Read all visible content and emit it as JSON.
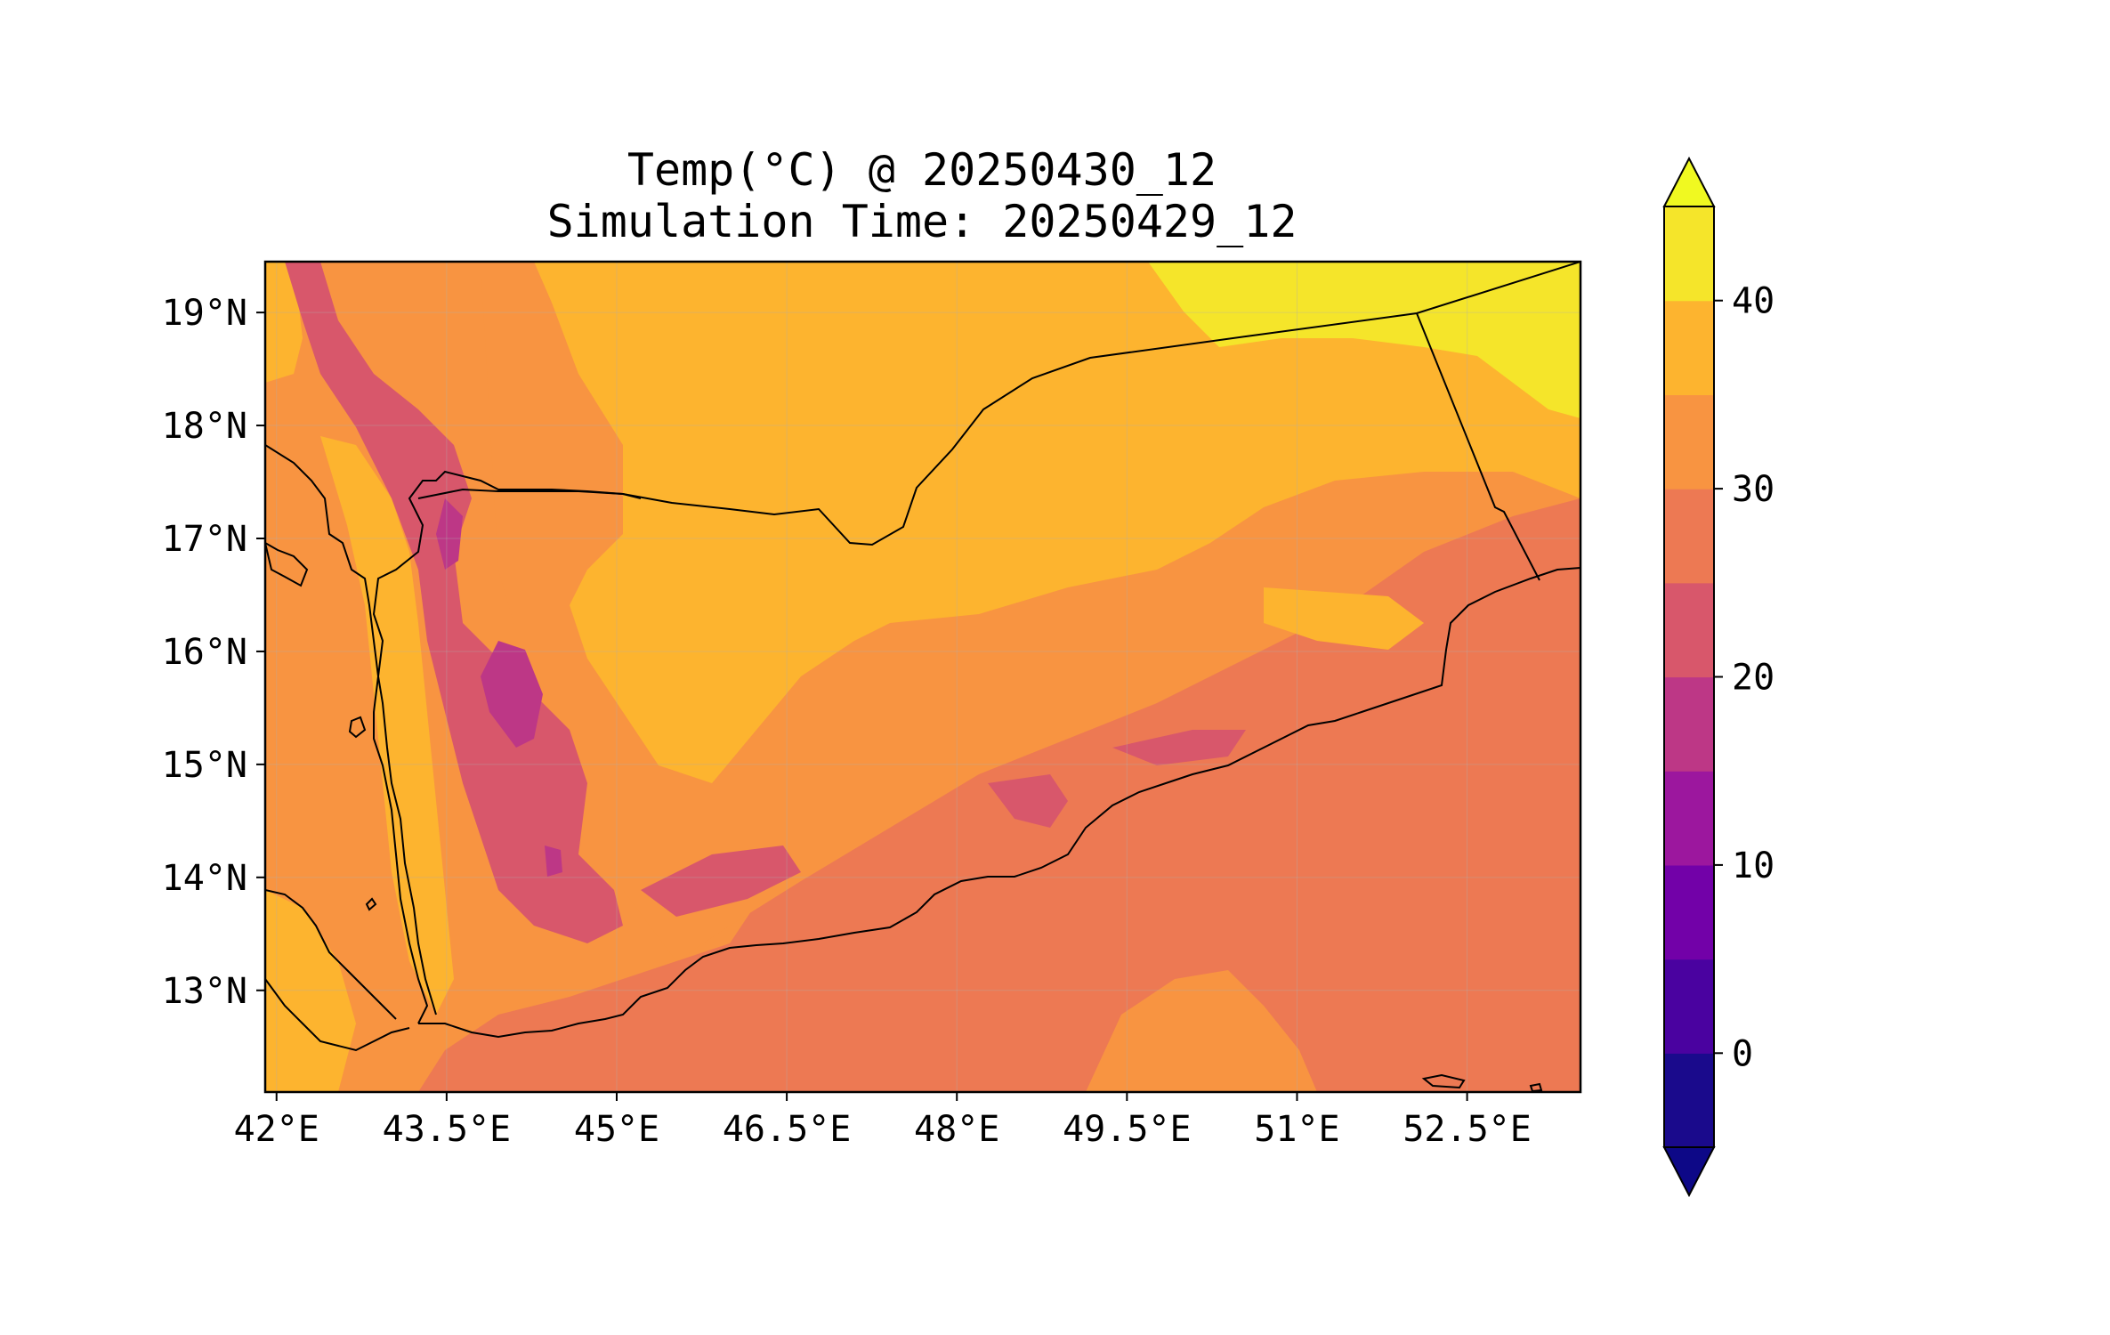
{
  "figure": {
    "title_line1": "Temp(°C) @ 20250430_12",
    "title_line2": "Simulation Time: 20250429_12"
  },
  "map": {
    "lon_range": [
      41.9,
      53.5
    ],
    "lat_range": [
      12.1,
      19.45
    ],
    "lon_ticks": [
      {
        "value": 42.0,
        "label": "42°E"
      },
      {
        "value": 43.5,
        "label": "43.5°E"
      },
      {
        "value": 45.0,
        "label": "45°E"
      },
      {
        "value": 46.5,
        "label": "46.5°E"
      },
      {
        "value": 48.0,
        "label": "48°E"
      },
      {
        "value": 49.5,
        "label": "49.5°E"
      },
      {
        "value": 51.0,
        "label": "51°E"
      },
      {
        "value": 52.5,
        "label": "52.5°E"
      }
    ],
    "lat_ticks": [
      {
        "value": 19,
        "label": "19°N"
      },
      {
        "value": 18,
        "label": "18°N"
      },
      {
        "value": 17,
        "label": "17°N"
      },
      {
        "value": 16,
        "label": "16°N"
      },
      {
        "value": 15,
        "label": "15°N"
      },
      {
        "value": 14,
        "label": "14°N"
      },
      {
        "value": 13,
        "label": "13°N"
      }
    ],
    "gridlines": true
  },
  "colorbar": {
    "levels": [
      -5,
      0,
      5,
      10,
      15,
      20,
      25,
      30,
      35,
      40,
      45
    ],
    "colors": [
      "#1a0a8c",
      "#4a02a0",
      "#7201a8",
      "#9c179e",
      "#bd3786",
      "#d8576b",
      "#ed7953",
      "#f89441",
      "#fdb42f",
      "#f5e52a"
    ],
    "under_color": "#0d0887",
    "over_color": "#f0f921",
    "extend": "both",
    "tick_labels": [
      {
        "value": 0,
        "label": "0"
      },
      {
        "value": 10,
        "label": "10"
      },
      {
        "value": 20,
        "label": "20"
      },
      {
        "value": 30,
        "label": "30"
      },
      {
        "value": 40,
        "label": "40"
      }
    ]
  }
}
